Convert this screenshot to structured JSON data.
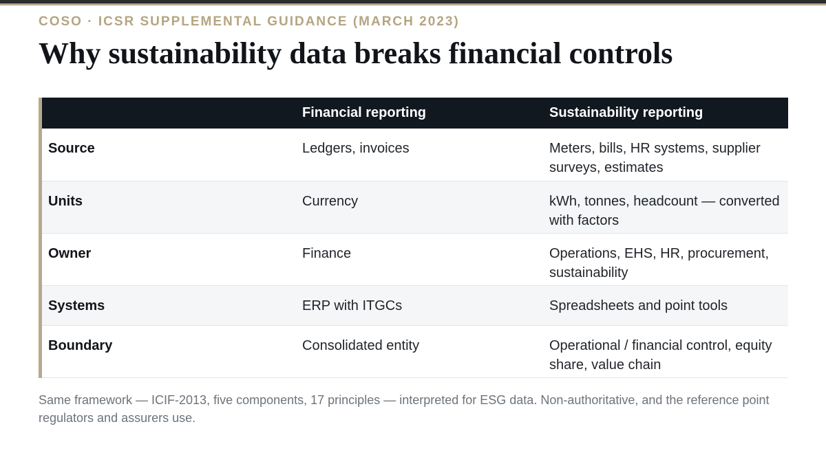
{
  "eyebrow": "COSO · ICSR SUPPLEMENTAL GUIDANCE (MARCH 2023)",
  "title": "Why sustainability data breaks financial controls",
  "table": {
    "headers": [
      "",
      "Financial reporting",
      "Sustainability reporting"
    ],
    "rows": [
      {
        "label": "Source",
        "financial": "Ledgers, invoices",
        "sustainability": "Meters, bills, HR systems, supplier surveys, estimates"
      },
      {
        "label": "Units",
        "financial": "Currency",
        "sustainability": "kWh, tonnes, headcount — converted with factors"
      },
      {
        "label": "Owner",
        "financial": "Finance",
        "sustainability": "Operations, EHS, HR, procurement, sustainability"
      },
      {
        "label": "Systems",
        "financial": "ERP with ITGCs",
        "sustainability": "Spreadsheets and point tools"
      },
      {
        "label": "Boundary",
        "financial": "Consolidated entity",
        "sustainability": "Operational / financial control, equity share, value chain"
      }
    ]
  },
  "footnote": "Same framework — ICIF-2013, five components, 17 principles — interpreted for ESG data. Non-authoritative, and the reference point regulators and assurers use.",
  "colors": {
    "accent": "#b8a98a",
    "header_bg": "#111820",
    "title": "#111418"
  }
}
